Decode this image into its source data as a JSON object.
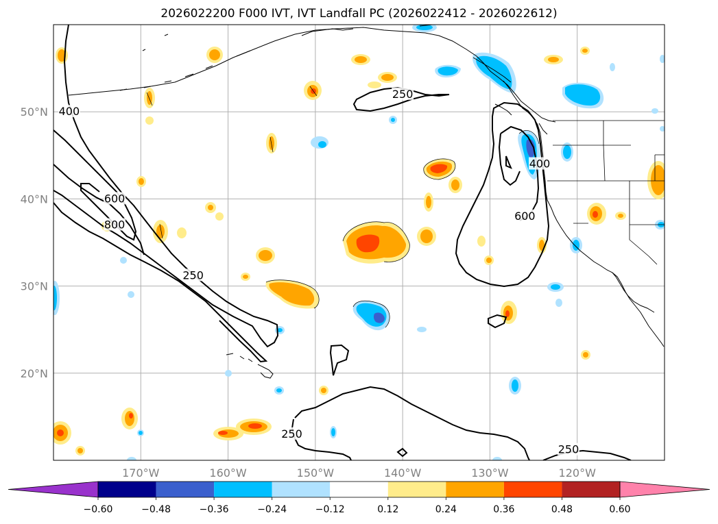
{
  "title": "2026022200 F000 IVT, IVT Landfall PC (2026022412 - 2026022612)",
  "map": {
    "lon_range": [
      -180,
      -110
    ],
    "lat_range": [
      10,
      60
    ],
    "lon_ticks": [
      {
        "value": -170,
        "label": "170°W"
      },
      {
        "value": -160,
        "label": "160°W"
      },
      {
        "value": -150,
        "label": "150°W"
      },
      {
        "value": -140,
        "label": "140°W"
      },
      {
        "value": -130,
        "label": "130°W"
      },
      {
        "value": -120,
        "label": "120°W"
      }
    ],
    "lat_ticks": [
      {
        "value": 20,
        "label": "20°N"
      },
      {
        "value": 30,
        "label": "30°N"
      },
      {
        "value": 40,
        "label": "40°N"
      },
      {
        "value": 50,
        "label": "50°N"
      }
    ],
    "grid": true,
    "contour_labels": [
      {
        "text": "400",
        "lon": -178.2,
        "lat": 50.0
      },
      {
        "text": "600",
        "lon": -173.0,
        "lat": 40.0
      },
      {
        "text": "800",
        "lon": -173.0,
        "lat": 37.0
      },
      {
        "text": "250",
        "lon": -164.0,
        "lat": 31.2
      },
      {
        "text": "250",
        "lon": -140.0,
        "lat": 52.0
      },
      {
        "text": "400",
        "lon": -124.3,
        "lat": 44.0
      },
      {
        "text": "600",
        "lon": -126.0,
        "lat": 38.0
      },
      {
        "text": "250",
        "lon": -152.7,
        "lat": 13.0
      },
      {
        "text": "250",
        "lon": -121.0,
        "lat": 11.2
      }
    ]
  },
  "colorbar": {
    "levels": [
      -0.72,
      -0.6,
      -0.48,
      -0.36,
      -0.24,
      -0.12,
      0.12,
      0.24,
      0.36,
      0.48,
      0.6,
      0.72
    ],
    "colors": [
      "#9932CC",
      "#00008B",
      "#3A5FCD",
      "#00BFFF",
      "#B0E2FF",
      "#FFFFFF",
      "#FFEC8B",
      "#FFA500",
      "#FF4500",
      "#B22222",
      "#FF82AB"
    ],
    "extend": "both",
    "tick_labels": [
      "−0.60",
      "−0.48",
      "−0.36",
      "−0.24",
      "−0.12",
      "0.12",
      "0.24",
      "0.36",
      "0.48",
      "0.60"
    ]
  }
}
